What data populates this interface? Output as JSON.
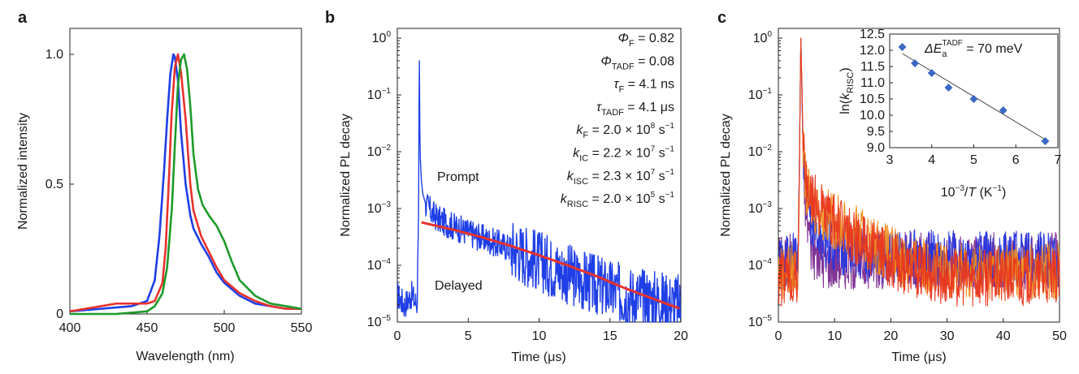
{
  "panels": {
    "a": {
      "label": "a"
    },
    "b": {
      "label": "b"
    },
    "c": {
      "label": "c"
    }
  },
  "annotations_b": [
    {
      "sym": "Φ",
      "sub": "F",
      "value": " = 0.82"
    },
    {
      "sym": "Φ",
      "sub": "TADF",
      "value": " = 0.08"
    },
    {
      "sym": "τ",
      "sub": "F",
      "value": " = 4.1 ns"
    },
    {
      "sym": "τ",
      "sub": "TADF",
      "value": " = 4.1 μs"
    },
    {
      "sym": "k",
      "sub": "F",
      "value": " = 2.0 × 10",
      "sup": "8",
      "unit": " s",
      "unitsup": "−1"
    },
    {
      "sym": "k",
      "sub": "IC",
      "value": " = 2.2 × 10",
      "sup": "7",
      "unit": " s",
      "unitsup": "−1"
    },
    {
      "sym": "k",
      "sub": "ISC",
      "value": " = 2.3 × 10",
      "sup": "7",
      "unit": " s",
      "unitsup": "−1"
    },
    {
      "sym": "k",
      "sub": "RISC",
      "value": " = 2.0 × 10",
      "sup": "5",
      "unit": " s",
      "unitsup": "−1"
    }
  ],
  "labels_b": {
    "prompt": "Prompt",
    "delayed": "Delayed"
  },
  "inset_c": {
    "annotation_prefix": "ΔE",
    "annotation_sub": "a",
    "annotation_sup": "TADF",
    "annotation_value": " = 70 meV"
  },
  "chart_data": [
    {
      "panel": "a",
      "type": "line",
      "xlabel": "Wavelength (nm)",
      "ylabel": "Normalized intensity",
      "xlim": [
        400,
        550
      ],
      "ylim": [
        0,
        1.1
      ],
      "xticks": [
        400,
        450,
        500,
        550
      ],
      "yticks": [
        0,
        0.5,
        1.0
      ],
      "yticklabels": [
        "0",
        "0.5",
        "1.0"
      ],
      "series": [
        {
          "color": "#1f3fe6",
          "x": [
            400,
            420,
            440,
            450,
            455,
            458,
            461,
            463,
            465,
            467,
            468,
            470,
            472,
            475,
            478,
            480,
            485,
            490,
            495,
            500,
            510,
            520,
            530,
            540,
            550
          ],
          "y": [
            0.01,
            0.02,
            0.03,
            0.05,
            0.13,
            0.3,
            0.55,
            0.75,
            0.92,
            1.0,
            0.99,
            0.9,
            0.7,
            0.5,
            0.38,
            0.33,
            0.27,
            0.22,
            0.16,
            0.12,
            0.07,
            0.04,
            0.03,
            0.02,
            0.02
          ]
        },
        {
          "color": "#e8322d",
          "x": [
            400,
            410,
            420,
            430,
            440,
            445,
            450,
            455,
            460,
            462,
            464,
            466,
            468,
            470,
            472,
            475,
            478,
            480,
            485,
            490,
            495,
            500,
            510,
            520,
            530,
            540,
            550
          ],
          "y": [
            0.01,
            0.02,
            0.03,
            0.04,
            0.04,
            0.04,
            0.04,
            0.05,
            0.12,
            0.25,
            0.5,
            0.78,
            0.95,
            1.0,
            0.93,
            0.75,
            0.5,
            0.4,
            0.3,
            0.24,
            0.18,
            0.13,
            0.08,
            0.05,
            0.03,
            0.02,
            0.02
          ]
        },
        {
          "color": "#1e9a2a",
          "x": [
            400,
            430,
            450,
            455,
            460,
            463,
            466,
            468,
            470,
            472,
            474,
            476,
            478,
            480,
            483,
            486,
            490,
            495,
            500,
            505,
            510,
            520,
            530,
            540,
            550
          ],
          "y": [
            0.0,
            0.0,
            0.01,
            0.03,
            0.08,
            0.18,
            0.4,
            0.65,
            0.88,
            0.98,
            1.0,
            0.94,
            0.8,
            0.62,
            0.48,
            0.42,
            0.38,
            0.34,
            0.28,
            0.2,
            0.13,
            0.07,
            0.04,
            0.03,
            0.02
          ]
        }
      ]
    },
    {
      "panel": "b",
      "type": "line",
      "xlabel": "Time (μs)",
      "ylabel": "Normalized PL decay",
      "xlim": [
        0,
        20
      ],
      "ylim": [
        1e-05,
        1
      ],
      "yscale": "log",
      "xticks": [
        0,
        5,
        10,
        15,
        20
      ],
      "yticks_exp": [
        0,
        -1,
        -2,
        -3,
        -4,
        -5
      ],
      "series": [
        {
          "color": "#1f3fe6",
          "x": [
            0,
            0.5,
            1.0,
            1.4,
            1.5,
            1.55,
            1.6,
            1.7,
            1.8,
            2.0,
            2.5,
            3,
            4,
            5,
            6,
            8,
            10,
            12,
            14,
            16,
            18,
            20
          ],
          "y": [
            3e-05,
            2e-05,
            3e-05,
            2e-05,
            0.001,
            1.0,
            0.01,
            0.003,
            0.0018,
            0.0012,
            0.0008,
            0.00062,
            0.00048,
            0.00038,
            0.0003,
            0.0002,
            0.00012,
            7e-05,
            4.5e-05,
            3e-05,
            2.5e-05,
            2e-05
          ],
          "noise": true
        },
        {
          "color": "#e8322d",
          "x": [
            1.7,
            4,
            6,
            8,
            10,
            12,
            14,
            16,
            18,
            20
          ],
          "y": [
            0.00057,
            0.00042,
            0.00031,
            0.00022,
            0.00015,
            0.0001,
            6.5e-05,
            4e-05,
            2.6e-05,
            1.7e-05
          ]
        }
      ]
    },
    {
      "panel": "c",
      "type": "line",
      "xlabel": "Time (μs)",
      "ylabel": "Normalized PL decay",
      "xlim": [
        0,
        50
      ],
      "ylim": [
        1e-05,
        1.6
      ],
      "yscale": "log",
      "xticks": [
        0,
        10,
        20,
        30,
        40,
        50
      ],
      "yticks_exp": [
        0,
        -1,
        -2,
        -3,
        -4,
        -5
      ],
      "series": [
        {
          "color": "#7b2a8f",
          "x": [
            0,
            3.5,
            4,
            4.5,
            5,
            6,
            7,
            8,
            10,
            15,
            20,
            30,
            40,
            50
          ],
          "y": [
            0.00012,
            0.00012,
            1.0,
            0.003,
            0.0008,
            0.0002,
            0.00014,
            0.00012,
            0.00012,
            0.00012,
            0.00012,
            0.00012,
            0.00012,
            0.00012
          ],
          "noise": true
        },
        {
          "color": "#2233e0",
          "x": [
            0,
            3.5,
            4,
            4.5,
            5,
            6,
            7,
            8,
            10,
            15,
            20,
            30,
            40,
            50
          ],
          "y": [
            0.00012,
            0.00012,
            1.0,
            0.003,
            0.0013,
            0.0006,
            0.00035,
            0.0003,
            0.00024,
            0.00016,
            0.00014,
            0.00013,
            0.00013,
            0.00013
          ],
          "noise": true
        },
        {
          "color": "#f28c1a",
          "x": [
            0,
            3.5,
            4,
            4.5,
            5,
            6,
            8,
            10,
            15,
            20,
            25,
            30,
            40,
            50
          ],
          "y": [
            8e-05,
            8e-05,
            1.0,
            0.006,
            0.002,
            0.0012,
            0.0008,
            0.0006,
            0.0003,
            0.00016,
            0.0001,
            8e-05,
            8e-05,
            8e-05
          ],
          "noise": true
        },
        {
          "color": "#e8361e",
          "x": [
            0,
            3.5,
            4,
            4.5,
            5,
            6,
            8,
            10,
            15,
            20,
            25,
            30,
            40,
            50
          ],
          "y": [
            6e-05,
            6e-05,
            1.0,
            0.008,
            0.0025,
            0.0015,
            0.0009,
            0.0006,
            0.00025,
            0.00012,
            8e-05,
            6e-05,
            6e-05,
            6e-05
          ],
          "noise": true
        }
      ]
    },
    {
      "panel": "c-inset",
      "type": "scatter",
      "xlabel_parts": {
        "base": "10",
        "exp": "−3",
        "mid": "/",
        "var": "T",
        "unit": " (K",
        "unitexp": "−1",
        "close": ")"
      },
      "ylabel_parts": {
        "pre": "ln(",
        "var": "k",
        "sub": "RISC",
        "post": ")"
      },
      "xlim": [
        3,
        7
      ],
      "ylim": [
        9.0,
        12.5
      ],
      "xticks": [
        3,
        4,
        5,
        6,
        7
      ],
      "yticks": [
        9.0,
        9.5,
        10.0,
        10.5,
        11.0,
        11.5,
        12.0,
        12.5
      ],
      "yticklabels": [
        "9.0",
        "9.5",
        "10.0",
        "10.5",
        "11.0",
        "11.5",
        "12.0",
        "12.5"
      ],
      "points": {
        "color": "#3a68c4",
        "x": [
          3.3,
          3.6,
          4.0,
          4.4,
          5.0,
          5.7,
          6.7
        ],
        "y": [
          12.1,
          11.6,
          11.3,
          10.85,
          10.5,
          10.15,
          9.2
        ]
      },
      "fit": {
        "x": [
          3.3,
          6.7
        ],
        "y": [
          11.9,
          9.25
        ]
      }
    }
  ]
}
